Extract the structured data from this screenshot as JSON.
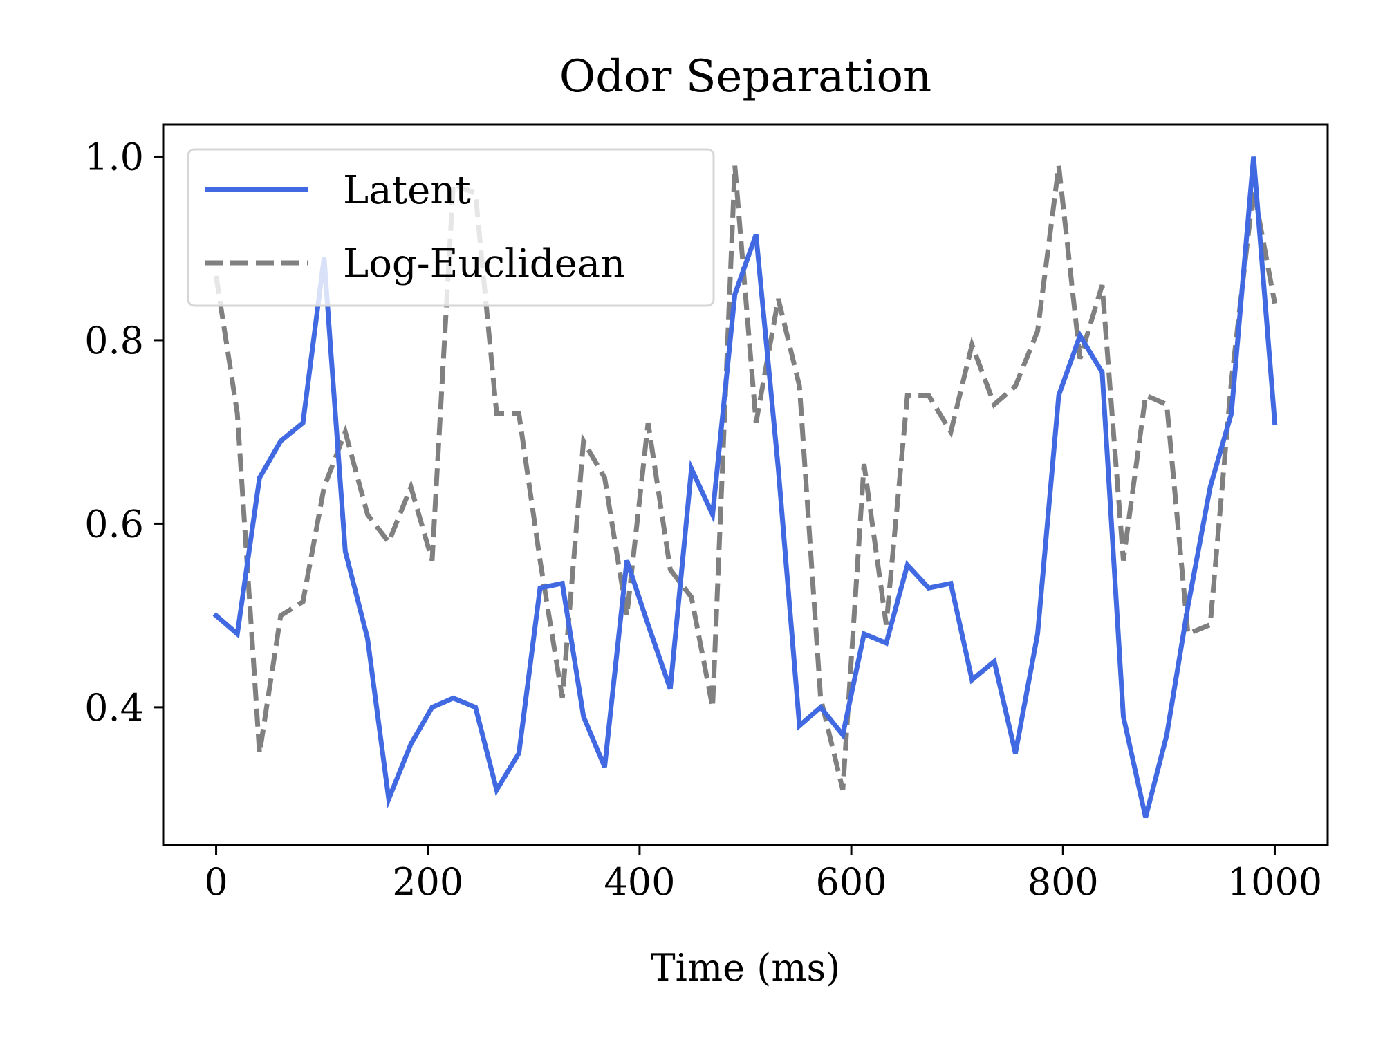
{
  "chart_data": {
    "type": "line",
    "title": "Odor Separation",
    "xlabel": "Time (ms)",
    "ylabel": "",
    "xlim": [
      -50,
      1050
    ],
    "ylim": [
      0.25,
      1.035
    ],
    "xticks": [
      0,
      200,
      400,
      600,
      800,
      1000
    ],
    "xtick_labels": [
      "0",
      "200",
      "400",
      "600",
      "800",
      "1000"
    ],
    "yticks": [
      0.4,
      0.6,
      0.8,
      1.0
    ],
    "ytick_labels": [
      "0.4",
      "0.6",
      "0.8",
      "1.0"
    ],
    "grid": false,
    "legend_position": "top-left",
    "x": [
      0,
      20,
      41,
      61,
      82,
      102,
      122,
      143,
      163,
      184,
      204,
      224,
      245,
      265,
      286,
      306,
      327,
      347,
      367,
      388,
      408,
      429,
      449,
      469,
      490,
      510,
      531,
      551,
      571,
      592,
      612,
      633,
      653,
      673,
      694,
      714,
      735,
      755,
      776,
      796,
      816,
      837,
      857,
      878,
      898,
      918,
      939,
      959,
      980,
      1000
    ],
    "series": [
      {
        "name": "Latent",
        "color": "#4169e1",
        "style": "solid",
        "values": [
          0.5,
          0.48,
          0.65,
          0.69,
          0.71,
          0.89,
          0.57,
          0.475,
          0.3,
          0.36,
          0.4,
          0.41,
          0.4,
          0.31,
          0.35,
          0.53,
          0.535,
          0.39,
          0.335,
          0.56,
          0.49,
          0.42,
          0.66,
          0.61,
          0.85,
          0.915,
          0.66,
          0.38,
          0.4,
          0.37,
          0.48,
          0.47,
          0.555,
          0.53,
          0.535,
          0.43,
          0.45,
          0.35,
          0.48,
          0.74,
          0.805,
          0.765,
          0.39,
          0.28,
          0.37,
          0.51,
          0.64,
          0.72,
          1.0,
          0.71
        ]
      },
      {
        "name": "Log-Euclidean",
        "color": "#808080",
        "style": "dashed",
        "values": [
          0.87,
          0.72,
          0.35,
          0.5,
          0.515,
          0.64,
          0.7,
          0.61,
          0.58,
          0.64,
          0.56,
          0.97,
          0.96,
          0.72,
          0.72,
          0.56,
          0.41,
          0.69,
          0.65,
          0.5,
          0.71,
          0.55,
          0.52,
          0.4,
          0.99,
          0.71,
          0.845,
          0.75,
          0.41,
          0.31,
          0.665,
          0.49,
          0.74,
          0.74,
          0.7,
          0.795,
          0.73,
          0.75,
          0.81,
          0.99,
          0.78,
          0.86,
          0.56,
          0.74,
          0.73,
          0.48,
          0.49,
          0.755,
          0.965,
          0.84
        ]
      }
    ]
  }
}
